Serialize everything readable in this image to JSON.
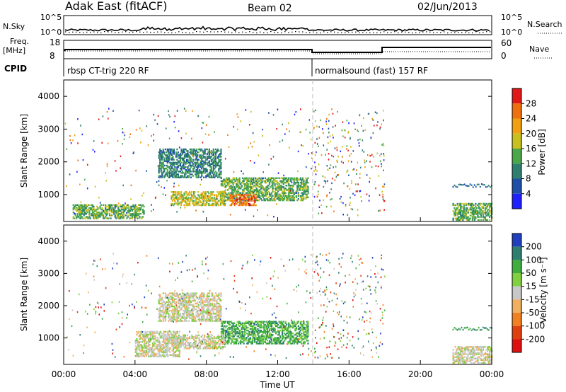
{
  "header": {
    "station": "Adak East (fitACF)",
    "beam": "Beam 02",
    "date": "02/Jun/2013"
  },
  "nsky_panel": {
    "left_label": "N.Sky",
    "right_label": "N.Search",
    "left_ticks": [
      "10^5",
      "10^0"
    ],
    "right_ticks": [
      "10^5",
      "10^0"
    ]
  },
  "freq_panel": {
    "left_label": "Freq.",
    "left_unit": "[MHz]",
    "right_label": "Nave",
    "left_ticks": [
      "18",
      "8"
    ],
    "right_ticks": [
      "60",
      "0"
    ]
  },
  "cpid_panel": {
    "label": "CPID",
    "modes": [
      {
        "name": "rbsp CT-trig 220 RF",
        "start_hour": 0
      },
      {
        "name": "normalsound (fast) 157 RF",
        "start_hour": 14
      }
    ]
  },
  "chart_data": [
    {
      "type": "heatmap",
      "quantity": "Power",
      "ylabel": "Slant Range [km]",
      "xlabel": "",
      "ylim": [
        180,
        4500
      ],
      "xlim": [
        0,
        24
      ],
      "yticks": [
        "1000",
        "2000",
        "3000",
        "4000"
      ],
      "colorbar": {
        "label": "Power [dB]",
        "ticks": [
          "4",
          "8",
          "12",
          "16",
          "20",
          "24",
          "28"
        ],
        "range": [
          0,
          32
        ],
        "colors": [
          "#2020ff",
          "#1e4fa8",
          "#2f7f70",
          "#4aa84a",
          "#c8c01e",
          "#f0a010",
          "#f07010",
          "#e01818"
        ]
      },
      "blobs": [
        {
          "t0": 5.3,
          "t1": 8.8,
          "r0": 1500,
          "r1": 2400,
          "level": 2
        },
        {
          "t0": 8.8,
          "t1": 13.7,
          "r0": 800,
          "r1": 1500,
          "level": 3
        },
        {
          "t0": 9.3,
          "t1": 10.8,
          "r0": 650,
          "r1": 1000,
          "level": 6
        },
        {
          "t0": 6.0,
          "t1": 9.0,
          "r0": 650,
          "r1": 1100,
          "level": 4
        },
        {
          "t0": 0.5,
          "t1": 4.5,
          "r0": 250,
          "r1": 700,
          "level": 3
        },
        {
          "t0": 21.8,
          "t1": 24,
          "r0": 200,
          "r1": 700,
          "level": 3
        }
      ]
    },
    {
      "type": "heatmap",
      "quantity": "Velocity",
      "ylabel": "Slant Range [km]",
      "xlabel": "Time UT",
      "ylim": [
        180,
        4500
      ],
      "xlim": [
        0,
        24
      ],
      "yticks": [
        "1000",
        "2000",
        "3000",
        "4000"
      ],
      "xticks": [
        "00:00",
        "04:00",
        "08:00",
        "12:00",
        "16:00",
        "20:00",
        "00:00"
      ],
      "colorbar": {
        "label": "Velocity [m s⁻¹]",
        "ticks": [
          "200",
          "100",
          "50",
          "15",
          "-15",
          "-50",
          "-100",
          "-200"
        ],
        "colors": [
          "#2040c0",
          "#2f7f70",
          "#3fae3f",
          "#80d040",
          "#c8c8c8",
          "#f0b060",
          "#f08020",
          "#e04010",
          "#e01010"
        ]
      },
      "blobs": [
        {
          "t0": 5.3,
          "t1": 8.8,
          "r0": 1500,
          "r1": 2400,
          "level": 4
        },
        {
          "t0": 8.8,
          "t1": 13.7,
          "r0": 800,
          "r1": 1500,
          "level": 2
        },
        {
          "t0": 6.0,
          "t1": 9.0,
          "r0": 650,
          "r1": 1100,
          "level": 4
        },
        {
          "t0": 4.0,
          "t1": 6.5,
          "r0": 400,
          "r1": 1200,
          "level": 4
        },
        {
          "t0": 21.8,
          "t1": 24,
          "r0": 200,
          "r1": 700,
          "level": 4
        }
      ]
    }
  ]
}
